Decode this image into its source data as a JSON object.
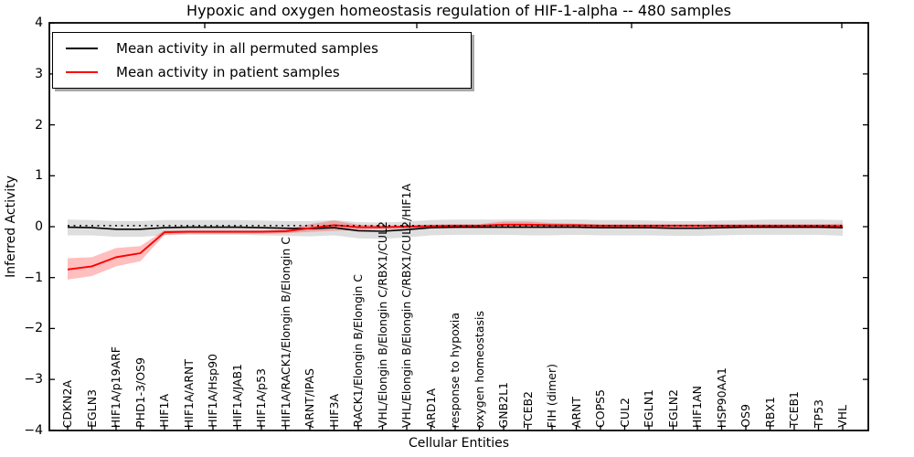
{
  "figure": {
    "title": "Hypoxic and oxygen homeostasis regulation of HIF-1-alpha -- 480 samples",
    "xlabel": "Cellular Entities",
    "ylabel": "Inferred Activity",
    "legend": [
      {
        "label": "Mean activity in all permuted samples",
        "color": "#000000"
      },
      {
        "label": "Mean activity in patient samples",
        "color": "#ff0000"
      }
    ]
  },
  "chart_data": {
    "type": "line",
    "title": "Hypoxic and oxygen homeostasis regulation of HIF-1-alpha -- 480 samples",
    "xlabel": "Cellular Entities",
    "ylabel": "Inferred Activity",
    "ylim": [
      -4,
      4
    ],
    "yticks": [
      4,
      3,
      2,
      1,
      0,
      -1,
      -2,
      -3,
      -4
    ],
    "grid": false,
    "legend_position": "upper left",
    "categories": [
      "CDKN2A",
      "EGLN3",
      "HIF1A/p19ARF",
      "PHD1-3/OS9",
      "HIF1A",
      "HIF1A/ARNT",
      "HIF1A/Hsp90",
      "HIF1A/JAB1",
      "HIF1A/p53",
      "HIF1A/RACK1/Elongin B/Elongin C",
      "ARNT/IPAS",
      "HIF3A",
      "RACK1/Elongin B/Elongin C",
      "VHL/Elongin B/Elongin C/RBX1/CUL2",
      "VHL/Elongin B/Elongin C/RBX1/CUL2/HIF1A",
      "ARD1A",
      "response to hypoxia",
      "oxygen homeostasis",
      "GNB2L1",
      "TCEB2",
      "FIH (dimer)",
      "ARNT",
      "COPS5",
      "CUL2",
      "EGLN1",
      "EGLN2",
      "HIF1AN",
      "HSP90AA1",
      "OS9",
      "RBX1",
      "TCEB1",
      "TP53",
      "VHL"
    ],
    "series": [
      {
        "name": "Mean activity in all permuted samples",
        "color": "#000000",
        "values": [
          -0.01,
          -0.02,
          -0.05,
          -0.05,
          -0.02,
          -0.01,
          -0.01,
          -0.01,
          -0.02,
          -0.03,
          -0.04,
          -0.02,
          -0.08,
          -0.09,
          -0.06,
          -0.02,
          -0.01,
          -0.01,
          -0.01,
          -0.01,
          -0.01,
          -0.01,
          -0.02,
          -0.02,
          -0.02,
          -0.03,
          -0.03,
          -0.02,
          -0.01,
          -0.01,
          -0.01,
          -0.01,
          -0.02
        ],
        "band": {
          "fill": "rgba(0,0,0,0.13)",
          "upper": [
            0.14,
            0.13,
            0.11,
            0.11,
            0.13,
            0.13,
            0.13,
            0.13,
            0.12,
            0.11,
            0.11,
            0.13,
            0.09,
            0.08,
            0.1,
            0.13,
            0.14,
            0.14,
            0.14,
            0.14,
            0.14,
            0.14,
            0.13,
            0.13,
            0.12,
            0.11,
            0.11,
            0.12,
            0.13,
            0.14,
            0.14,
            0.14,
            0.13
          ],
          "lower": [
            -0.17,
            -0.17,
            -0.2,
            -0.2,
            -0.17,
            -0.16,
            -0.16,
            -0.16,
            -0.17,
            -0.18,
            -0.19,
            -0.17,
            -0.23,
            -0.24,
            -0.21,
            -0.17,
            -0.16,
            -0.16,
            -0.16,
            -0.17,
            -0.17,
            -0.16,
            -0.17,
            -0.17,
            -0.17,
            -0.18,
            -0.18,
            -0.17,
            -0.16,
            -0.16,
            -0.16,
            -0.16,
            -0.18
          ]
        }
      },
      {
        "name": "Mean activity in patient samples",
        "color": "#ff0000",
        "values": [
          -0.84,
          -0.78,
          -0.6,
          -0.52,
          -0.11,
          -0.1,
          -0.1,
          -0.1,
          -0.1,
          -0.09,
          -0.03,
          0.03,
          -0.01,
          -0.01,
          0.0,
          0.01,
          0.02,
          0.02,
          0.04,
          0.04,
          0.03,
          0.03,
          0.02,
          0.02,
          0.02,
          0.02,
          0.02,
          0.02,
          0.02,
          0.02,
          0.02,
          0.02,
          0.01
        ],
        "band": {
          "fill": "rgba(255,0,0,0.25)",
          "upper": [
            -0.62,
            -0.6,
            -0.42,
            -0.38,
            -0.07,
            -0.07,
            -0.07,
            -0.07,
            -0.07,
            -0.06,
            0.05,
            0.12,
            0.04,
            0.02,
            0.03,
            0.04,
            0.05,
            0.05,
            0.1,
            0.1,
            0.07,
            0.06,
            0.05,
            0.05,
            0.05,
            0.05,
            0.05,
            0.05,
            0.05,
            0.05,
            0.05,
            0.05,
            0.06
          ],
          "lower": [
            -1.04,
            -0.97,
            -0.78,
            -0.68,
            -0.16,
            -0.14,
            -0.14,
            -0.14,
            -0.14,
            -0.13,
            -0.1,
            -0.08,
            -0.07,
            -0.05,
            -0.04,
            -0.03,
            -0.02,
            -0.02,
            -0.02,
            -0.02,
            -0.02,
            -0.02,
            -0.02,
            -0.02,
            -0.02,
            -0.02,
            -0.02,
            -0.02,
            -0.02,
            -0.02,
            -0.02,
            -0.02,
            -0.04
          ]
        }
      }
    ],
    "reference_line": {
      "value": 0.02,
      "style": "dotted",
      "color": "#000000"
    }
  }
}
